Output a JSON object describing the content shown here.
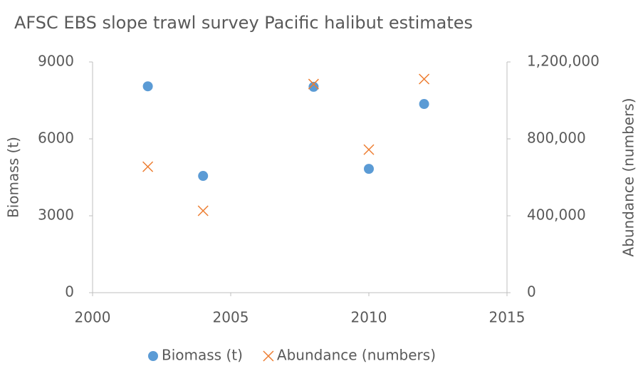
{
  "chart_data": {
    "type": "scatter",
    "title": "AFSC EBS slope trawl survey Pacific halibut estimates",
    "y_label": "Biomass (t)",
    "y2_label": "Abundance (numbers)",
    "series": [
      {
        "name": "Biomass (t)",
        "color": "#5b9bd5",
        "marker": "circle",
        "x": [
          2002,
          2004,
          2008,
          2010,
          2012
        ],
        "values": [
          8050,
          4555,
          8030,
          4830,
          7360
        ]
      },
      {
        "name": "Abundance (numbers)",
        "color": "#ed7d31",
        "marker": "x",
        "axis": "y2",
        "x": [
          2002,
          2004,
          2008,
          2010,
          2012
        ],
        "values": [
          655000,
          426000,
          1085000,
          744000,
          1111000
        ]
      }
    ],
    "xlim": [
      2000,
      2015
    ],
    "xticks": [
      2000,
      2005,
      2010,
      2015
    ],
    "ylim": [
      0,
      9000
    ],
    "yticks": [
      0,
      3000,
      6000,
      9000
    ],
    "y2lim": [
      0,
      1200000
    ],
    "y2ticks": [
      0,
      {
        "value": 400000,
        "label": "400,000"
      },
      {
        "value": 800000,
        "label": "800,000"
      },
      {
        "value": 1200000,
        "label": "1,200,000"
      }
    ],
    "legend": "bottom"
  }
}
